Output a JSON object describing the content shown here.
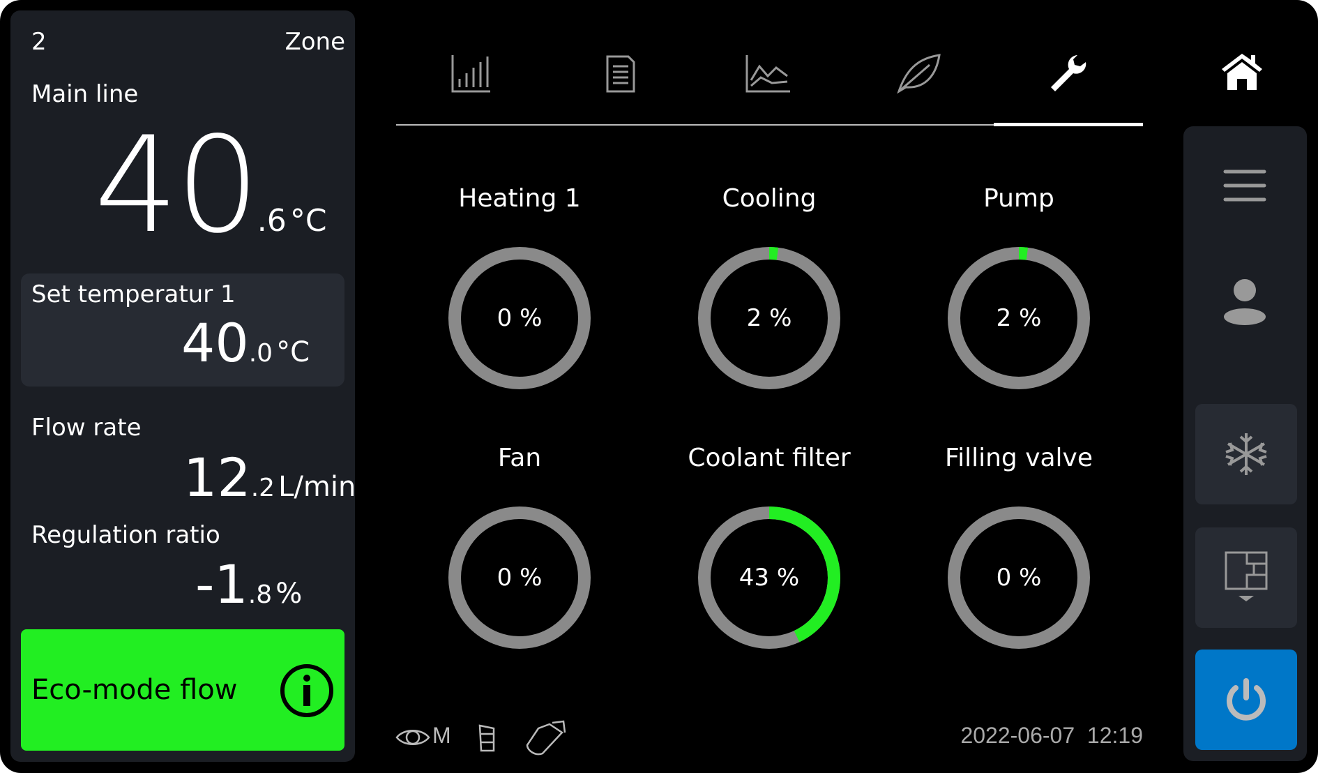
{
  "zone": {
    "number": "2",
    "label": "Zone"
  },
  "main_line": {
    "label": "Main line",
    "int": "40",
    "dec": ".6",
    "unit": "°C"
  },
  "set_temp": {
    "label": "Set temperatur 1",
    "int": "40",
    "dec": ".0",
    "unit": "°C"
  },
  "flow_rate": {
    "label": "Flow rate",
    "int": "12",
    "dec": ".2",
    "unit": "L/min"
  },
  "regulation": {
    "label": "Regulation ratio",
    "int": "-1",
    "dec": ".8",
    "unit": "%"
  },
  "eco": {
    "label": "Eco-mode flow",
    "color": "#22ee22"
  },
  "tabs": [
    {
      "icon": "bar-chart-icon"
    },
    {
      "icon": "document-icon"
    },
    {
      "icon": "line-chart-icon"
    },
    {
      "icon": "leaf-icon"
    },
    {
      "icon": "wrench-icon",
      "active": true
    }
  ],
  "gauges": [
    {
      "label": "Heating 1",
      "value": 0,
      "text": "0 %"
    },
    {
      "label": "Cooling",
      "value": 2,
      "text": "2 %"
    },
    {
      "label": "Pump",
      "value": 2,
      "text": "2 %"
    },
    {
      "label": "Fan",
      "value": 0,
      "text": "0 %"
    },
    {
      "label": "Coolant filter",
      "value": 43,
      "text": "43 %"
    },
    {
      "label": "Filling valve",
      "value": 0,
      "text": "0 %"
    }
  ],
  "gauge_colors": {
    "track": "#8a8a8a",
    "fill": "#22ee22"
  },
  "footer": {
    "status_letter": "M",
    "datetime": "2022-06-07  12:19"
  },
  "power_color": "#0077c8"
}
